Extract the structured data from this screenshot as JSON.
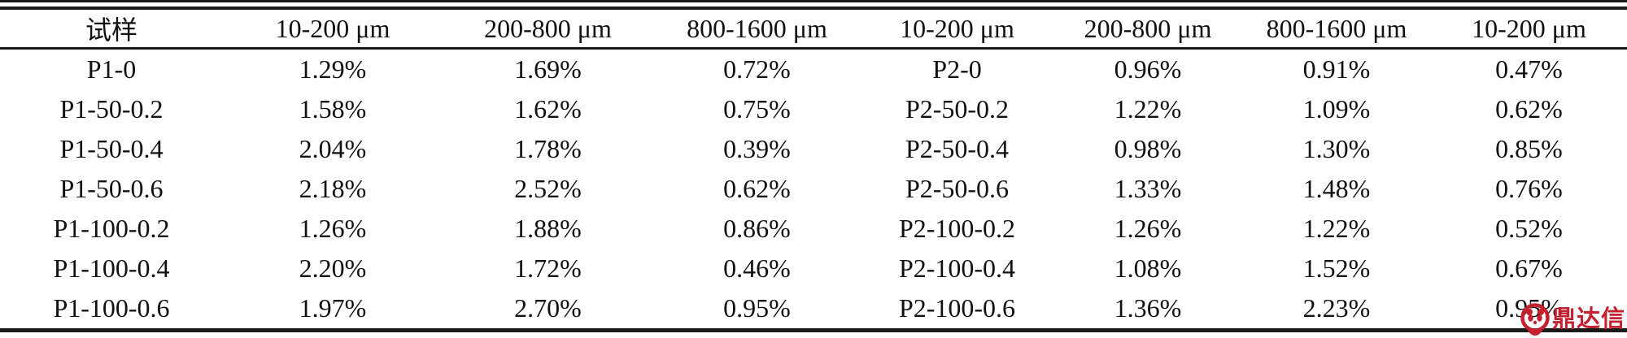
{
  "table": {
    "first_header": "试样",
    "headers": [
      "试样",
      "10-200 μm",
      "200-800 μm",
      "800-1600 μm",
      "10-200 μm",
      "200-800 μm",
      "800-1600 μm",
      "10-200 μm"
    ],
    "rows": [
      [
        "P1-0",
        "1.29%",
        "1.69%",
        "0.72%",
        "P2-0",
        "0.96%",
        "0.91%",
        "0.47%"
      ],
      [
        "P1-50-0.2",
        "1.58%",
        "1.62%",
        "0.75%",
        "P2-50-0.2",
        "1.22%",
        "1.09%",
        "0.62%"
      ],
      [
        "P1-50-0.4",
        "2.04%",
        "1.78%",
        "0.39%",
        "P2-50-0.4",
        "0.98%",
        "1.30%",
        "0.85%"
      ],
      [
        "P1-50-0.6",
        "2.18%",
        "2.52%",
        "0.62%",
        "P2-50-0.6",
        "1.33%",
        "1.48%",
        "0.76%"
      ],
      [
        "P1-100-0.2",
        "1.26%",
        "1.88%",
        "0.86%",
        "P2-100-0.2",
        "1.26%",
        "1.22%",
        "0.52%"
      ],
      [
        "P1-100-0.4",
        "2.20%",
        "1.72%",
        "0.46%",
        "P2-100-0.4",
        "1.08%",
        "1.52%",
        "0.67%"
      ],
      [
        "P1-100-0.6",
        "1.97%",
        "2.70%",
        "0.95%",
        "P2-100-0.6",
        "1.36%",
        "2.23%",
        "0.95%"
      ]
    ]
  },
  "colors": {
    "text": "#111111",
    "rule": "#1a1a1a",
    "watermark_red": "#c3212f"
  },
  "watermark": {
    "text": "鼎达信",
    "logo_icon": "panda-badge-icon",
    "color": "#c3212f"
  }
}
